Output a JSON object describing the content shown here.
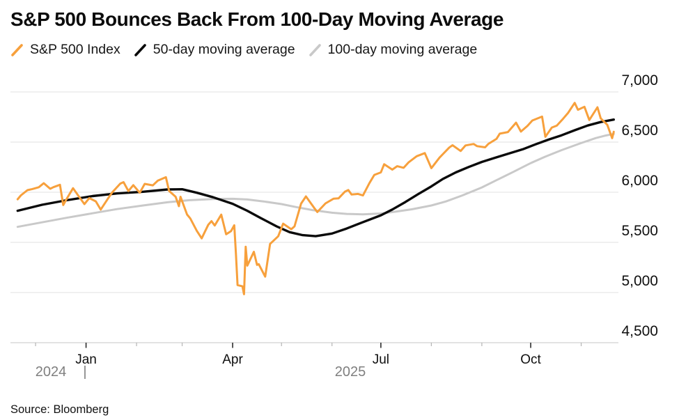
{
  "title": "S&P 500 Bounces Back From 100-Day Moving Average",
  "source": "Source: Bloomberg",
  "legend": {
    "items": [
      {
        "label": "S&P 500 Index",
        "color": "#F7A03C"
      },
      {
        "label": "50-day moving average",
        "color": "#0A0A0A"
      },
      {
        "label": "100-day moving average",
        "color": "#C9C9C9"
      }
    ]
  },
  "chart_data": {
    "type": "line",
    "title": "S&P 500 Bounces Back From 100-Day Moving Average",
    "xlabel": "",
    "ylabel": "",
    "grid": "horizontal",
    "legend_position": "top",
    "x_axis": {
      "start_date": "2024-11-19",
      "end_date": "2025-11-23",
      "year_left": "2024",
      "year_divider": "|",
      "year_right": "2025",
      "ticks": [
        {
          "date": "2024-12-01",
          "major": false
        },
        {
          "date": "2025-01-01",
          "major": true,
          "label": "Jan"
        },
        {
          "date": "2025-02-01",
          "major": false
        },
        {
          "date": "2025-03-01",
          "major": false
        },
        {
          "date": "2025-04-01",
          "major": true,
          "label": "Apr"
        },
        {
          "date": "2025-05-01",
          "major": false
        },
        {
          "date": "2025-06-01",
          "major": false
        },
        {
          "date": "2025-07-01",
          "major": true,
          "label": "Jul"
        },
        {
          "date": "2025-08-01",
          "major": false
        },
        {
          "date": "2025-09-01",
          "major": false
        },
        {
          "date": "2025-10-01",
          "major": true,
          "label": "Oct"
        },
        {
          "date": "2025-11-01",
          "major": false
        }
      ]
    },
    "y_axis": {
      "min": 4500,
      "max": 7000,
      "step": 500,
      "side": "right",
      "tick_labels": [
        "4,500",
        "5,000",
        "5,500",
        "6,000",
        "6,500",
        "7,000"
      ]
    },
    "series": [
      {
        "id": "sp500",
        "name": "S&P 500 Index",
        "color": "#F7A03C",
        "width": 3,
        "points": [
          [
            "2024-11-20",
            5930
          ],
          [
            "2024-11-22",
            5969
          ],
          [
            "2024-11-26",
            6021
          ],
          [
            "2024-11-29",
            6032
          ],
          [
            "2024-12-03",
            6050
          ],
          [
            "2024-12-06",
            6090
          ],
          [
            "2024-12-10",
            6035
          ],
          [
            "2024-12-12",
            6051
          ],
          [
            "2024-12-16",
            6074
          ],
          [
            "2024-12-18",
            5872
          ],
          [
            "2024-12-20",
            5931
          ],
          [
            "2024-12-24",
            6040
          ],
          [
            "2024-12-27",
            5971
          ],
          [
            "2024-12-31",
            5882
          ],
          [
            "2025-01-03",
            5942
          ],
          [
            "2025-01-07",
            5909
          ],
          [
            "2025-01-10",
            5827
          ],
          [
            "2025-01-15",
            5950
          ],
          [
            "2025-01-17",
            5997
          ],
          [
            "2025-01-22",
            6086
          ],
          [
            "2025-01-24",
            6101
          ],
          [
            "2025-01-27",
            6012
          ],
          [
            "2025-01-30",
            6071
          ],
          [
            "2025-02-03",
            5995
          ],
          [
            "2025-02-06",
            6083
          ],
          [
            "2025-02-11",
            6069
          ],
          [
            "2025-02-14",
            6115
          ],
          [
            "2025-02-19",
            6150
          ],
          [
            "2025-02-21",
            6013
          ],
          [
            "2025-02-25",
            5955
          ],
          [
            "2025-02-27",
            5861
          ],
          [
            "2025-02-28",
            5955
          ],
          [
            "2025-03-04",
            5778
          ],
          [
            "2025-03-06",
            5739
          ],
          [
            "2025-03-10",
            5615
          ],
          [
            "2025-03-13",
            5540
          ],
          [
            "2025-03-17",
            5675
          ],
          [
            "2025-03-19",
            5712
          ],
          [
            "2025-03-21",
            5668
          ],
          [
            "2025-03-25",
            5777
          ],
          [
            "2025-03-28",
            5581
          ],
          [
            "2025-03-31",
            5612
          ],
          [
            "2025-04-02",
            5671
          ],
          [
            "2025-04-03",
            5396
          ],
          [
            "2025-04-04",
            5074
          ],
          [
            "2025-04-07",
            5062
          ],
          [
            "2025-04-08",
            4983
          ],
          [
            "2025-04-09",
            5457
          ],
          [
            "2025-04-10",
            5268
          ],
          [
            "2025-04-14",
            5406
          ],
          [
            "2025-04-16",
            5276
          ],
          [
            "2025-04-17",
            5283
          ],
          [
            "2025-04-21",
            5158
          ],
          [
            "2025-04-24",
            5485
          ],
          [
            "2025-04-29",
            5561
          ],
          [
            "2025-05-02",
            5687
          ],
          [
            "2025-05-07",
            5631
          ],
          [
            "2025-05-09",
            5660
          ],
          [
            "2025-05-13",
            5886
          ],
          [
            "2025-05-16",
            5958
          ],
          [
            "2025-05-21",
            5845
          ],
          [
            "2025-05-23",
            5803
          ],
          [
            "2025-05-28",
            5889
          ],
          [
            "2025-06-02",
            5936
          ],
          [
            "2025-06-05",
            5939
          ],
          [
            "2025-06-09",
            6006
          ],
          [
            "2025-06-11",
            6022
          ],
          [
            "2025-06-13",
            5977
          ],
          [
            "2025-06-17",
            5983
          ],
          [
            "2025-06-20",
            5968
          ],
          [
            "2025-06-24",
            6092
          ],
          [
            "2025-06-27",
            6173
          ],
          [
            "2025-07-01",
            6198
          ],
          [
            "2025-07-03",
            6279
          ],
          [
            "2025-07-08",
            6226
          ],
          [
            "2025-07-11",
            6260
          ],
          [
            "2025-07-15",
            6244
          ],
          [
            "2025-07-18",
            6297
          ],
          [
            "2025-07-23",
            6359
          ],
          [
            "2025-07-28",
            6390
          ],
          [
            "2025-08-01",
            6240
          ],
          [
            "2025-08-06",
            6345
          ],
          [
            "2025-08-12",
            6446
          ],
          [
            "2025-08-14",
            6469
          ],
          [
            "2025-08-19",
            6411
          ],
          [
            "2025-08-22",
            6467
          ],
          [
            "2025-08-27",
            6481
          ],
          [
            "2025-08-29",
            6460
          ],
          [
            "2025-09-03",
            6448
          ],
          [
            "2025-09-05",
            6482
          ],
          [
            "2025-09-10",
            6532
          ],
          [
            "2025-09-12",
            6584
          ],
          [
            "2025-09-17",
            6600
          ],
          [
            "2025-09-22",
            6694
          ],
          [
            "2025-09-25",
            6605
          ],
          [
            "2025-09-29",
            6661
          ],
          [
            "2025-10-02",
            6715
          ],
          [
            "2025-10-08",
            6754
          ],
          [
            "2025-10-10",
            6553
          ],
          [
            "2025-10-14",
            6645
          ],
          [
            "2025-10-17",
            6664
          ],
          [
            "2025-10-21",
            6735
          ],
          [
            "2025-10-24",
            6792
          ],
          [
            "2025-10-28",
            6891
          ],
          [
            "2025-10-30",
            6822
          ],
          [
            "2025-11-03",
            6852
          ],
          [
            "2025-11-06",
            6720
          ],
          [
            "2025-11-11",
            6847
          ],
          [
            "2025-11-13",
            6737
          ],
          [
            "2025-11-17",
            6672
          ],
          [
            "2025-11-20",
            6539
          ],
          [
            "2025-11-21",
            6603
          ]
        ]
      },
      {
        "id": "ma50",
        "name": "50-day moving average",
        "color": "#0A0A0A",
        "width": 3.4,
        "points": [
          [
            "2024-11-20",
            5815
          ],
          [
            "2024-12-05",
            5875
          ],
          [
            "2024-12-20",
            5920
          ],
          [
            "2025-01-05",
            5962
          ],
          [
            "2025-01-20",
            5988
          ],
          [
            "2025-02-05",
            6005
          ],
          [
            "2025-02-20",
            6028
          ],
          [
            "2025-03-01",
            6030
          ],
          [
            "2025-03-10",
            5995
          ],
          [
            "2025-03-20",
            5950
          ],
          [
            "2025-04-01",
            5885
          ],
          [
            "2025-04-10",
            5815
          ],
          [
            "2025-04-18",
            5745
          ],
          [
            "2025-04-28",
            5660
          ],
          [
            "2025-05-06",
            5602
          ],
          [
            "2025-05-14",
            5572
          ],
          [
            "2025-05-22",
            5562
          ],
          [
            "2025-06-01",
            5588
          ],
          [
            "2025-06-10",
            5638
          ],
          [
            "2025-06-20",
            5702
          ],
          [
            "2025-07-01",
            5770
          ],
          [
            "2025-07-08",
            5828
          ],
          [
            "2025-07-16",
            5902
          ],
          [
            "2025-07-24",
            5982
          ],
          [
            "2025-08-01",
            6058
          ],
          [
            "2025-08-08",
            6132
          ],
          [
            "2025-08-16",
            6198
          ],
          [
            "2025-08-24",
            6252
          ],
          [
            "2025-09-01",
            6302
          ],
          [
            "2025-09-10",
            6348
          ],
          [
            "2025-09-18",
            6388
          ],
          [
            "2025-09-26",
            6428
          ],
          [
            "2025-10-04",
            6478
          ],
          [
            "2025-10-12",
            6525
          ],
          [
            "2025-10-20",
            6568
          ],
          [
            "2025-10-28",
            6618
          ],
          [
            "2025-11-05",
            6665
          ],
          [
            "2025-11-13",
            6700
          ],
          [
            "2025-11-21",
            6724
          ]
        ]
      },
      {
        "id": "ma100",
        "name": "100-day moving average",
        "color": "#C9C9C9",
        "width": 3,
        "points": [
          [
            "2024-11-20",
            5655
          ],
          [
            "2024-12-05",
            5700
          ],
          [
            "2024-12-20",
            5745
          ],
          [
            "2025-01-05",
            5790
          ],
          [
            "2025-01-20",
            5832
          ],
          [
            "2025-02-05",
            5868
          ],
          [
            "2025-02-20",
            5900
          ],
          [
            "2025-03-05",
            5920
          ],
          [
            "2025-03-20",
            5932
          ],
          [
            "2025-04-01",
            5935
          ],
          [
            "2025-04-10",
            5928
          ],
          [
            "2025-04-20",
            5908
          ],
          [
            "2025-05-01",
            5882
          ],
          [
            "2025-05-10",
            5852
          ],
          [
            "2025-05-20",
            5822
          ],
          [
            "2025-06-01",
            5796
          ],
          [
            "2025-06-10",
            5784
          ],
          [
            "2025-06-20",
            5780
          ],
          [
            "2025-07-01",
            5788
          ],
          [
            "2025-07-10",
            5806
          ],
          [
            "2025-07-20",
            5830
          ],
          [
            "2025-08-01",
            5868
          ],
          [
            "2025-08-10",
            5908
          ],
          [
            "2025-08-20",
            5968
          ],
          [
            "2025-09-01",
            6048
          ],
          [
            "2025-09-10",
            6120
          ],
          [
            "2025-09-20",
            6200
          ],
          [
            "2025-10-01",
            6290
          ],
          [
            "2025-10-10",
            6355
          ],
          [
            "2025-10-20",
            6420
          ],
          [
            "2025-11-01",
            6490
          ],
          [
            "2025-11-10",
            6540
          ],
          [
            "2025-11-16",
            6565
          ],
          [
            "2025-11-21",
            6582
          ]
        ]
      }
    ]
  },
  "style_colors": {
    "gridline": "#E0E0E0",
    "axis_baseline": "#C6C6C6",
    "minor_tick": "#B4B4B4",
    "major_tick": "#2B2B2B",
    "axis_text": "#0F0F0F",
    "year_text": "#7F7F7F"
  }
}
